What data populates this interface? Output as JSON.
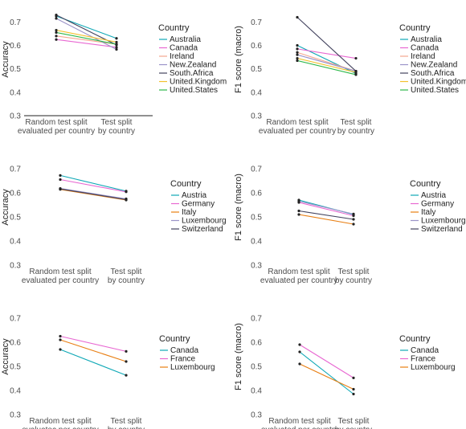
{
  "chart_data": [
    {
      "type": "line",
      "categories": [
        "Random test split\nevaluated per country",
        "Test split\nby country"
      ],
      "ylabel": "Accuracy",
      "ylim": [
        0.3,
        0.78
      ],
      "yticks": [
        0.3,
        0.4,
        0.5,
        0.6,
        0.7
      ],
      "legend_title": "Country",
      "axis_line": true,
      "series": [
        {
          "name": "Australia",
          "color": "#0fa8b6",
          "values": [
            0.725,
            0.63
          ]
        },
        {
          "name": "Canada",
          "color": "#e868d2",
          "values": [
            0.625,
            0.592
          ]
        },
        {
          "name": "Ireland",
          "color": "#f4a78f",
          "values": [
            0.64,
            0.605
          ]
        },
        {
          "name": "New.Zealand",
          "color": "#9b93c8",
          "values": [
            0.715,
            0.583
          ]
        },
        {
          "name": "South.Africa",
          "color": "#43435e",
          "values": [
            0.73,
            0.602
          ]
        },
        {
          "name": "United.Kingdom",
          "color": "#f2c12e",
          "values": [
            0.665,
            0.614
          ]
        },
        {
          "name": "United.States",
          "color": "#2eb84b",
          "values": [
            0.655,
            0.605
          ]
        }
      ]
    },
    {
      "type": "line",
      "categories": [
        "Random test split\nevaluated per country",
        "Test split\nby country"
      ],
      "ylabel": "F1 score (macro)",
      "ylim": [
        0.3,
        0.78
      ],
      "yticks": [
        0.3,
        0.4,
        0.5,
        0.6,
        0.7
      ],
      "legend_title": "Country",
      "axis_line": false,
      "series": [
        {
          "name": "Australia",
          "color": "#0fa8b6",
          "values": [
            0.6,
            0.48
          ]
        },
        {
          "name": "Canada",
          "color": "#e868d2",
          "values": [
            0.585,
            0.545
          ]
        },
        {
          "name": "Ireland",
          "color": "#f4a78f",
          "values": [
            0.57,
            0.49
          ]
        },
        {
          "name": "New.Zealand",
          "color": "#9b93c8",
          "values": [
            0.56,
            0.49
          ]
        },
        {
          "name": "South.Africa",
          "color": "#43435e",
          "values": [
            0.72,
            0.49
          ]
        },
        {
          "name": "United.Kingdom",
          "color": "#f2c12e",
          "values": [
            0.545,
            0.485
          ]
        },
        {
          "name": "United.States",
          "color": "#2eb84b",
          "values": [
            0.535,
            0.475
          ]
        }
      ]
    },
    {
      "type": "line",
      "categories": [
        "Random test split\nevaluated per country",
        "Test split\nby country"
      ],
      "ylabel": "Accuracy",
      "ylim": [
        0.3,
        0.78
      ],
      "yticks": [
        0.3,
        0.4,
        0.5,
        0.6,
        0.7
      ],
      "legend_title": "Country",
      "axis_line": false,
      "series": [
        {
          "name": "Austria",
          "color": "#0fa8b6",
          "values": [
            0.672,
            0.607
          ]
        },
        {
          "name": "Germany",
          "color": "#e868d2",
          "values": [
            0.655,
            0.604
          ]
        },
        {
          "name": "Italy",
          "color": "#e87e12",
          "values": [
            0.614,
            0.57
          ]
        },
        {
          "name": "Luxembourg",
          "color": "#9b93c8",
          "values": [
            0.618,
            0.575
          ]
        },
        {
          "name": "Switzerland",
          "color": "#43435e",
          "values": [
            0.616,
            0.572
          ]
        }
      ]
    },
    {
      "type": "line",
      "categories": [
        "Random test split\nevaluated per country",
        "Test split\nby country"
      ],
      "ylabel": "F1 score (macro)",
      "ylim": [
        0.3,
        0.78
      ],
      "yticks": [
        0.3,
        0.4,
        0.5,
        0.6,
        0.7
      ],
      "legend_title": "Country",
      "axis_line": false,
      "series": [
        {
          "name": "Austria",
          "color": "#0fa8b6",
          "values": [
            0.57,
            0.51
          ]
        },
        {
          "name": "Germany",
          "color": "#e868d2",
          "values": [
            0.56,
            0.505
          ]
        },
        {
          "name": "Italy",
          "color": "#e87e12",
          "values": [
            0.51,
            0.47
          ]
        },
        {
          "name": "Luxembourg",
          "color": "#9b93c8",
          "values": [
            0.565,
            0.512
          ]
        },
        {
          "name": "Switzerland",
          "color": "#43435e",
          "values": [
            0.525,
            0.49
          ]
        }
      ]
    },
    {
      "type": "line",
      "categories": [
        "Random test split\nevaluatec per country",
        "Test split\nby country"
      ],
      "ylabel": "Accuracy",
      "ylim": [
        0.3,
        0.78
      ],
      "yticks": [
        0.3,
        0.4,
        0.5,
        0.6,
        0.7
      ],
      "legend_title": "Country",
      "axis_line": false,
      "series": [
        {
          "name": "Canada",
          "color": "#0fa8b6",
          "values": [
            0.57,
            0.463
          ]
        },
        {
          "name": "France",
          "color": "#e868d2",
          "values": [
            0.625,
            0.562
          ]
        },
        {
          "name": "Luxembourg",
          "color": "#e87e12",
          "values": [
            0.61,
            0.52
          ]
        }
      ]
    },
    {
      "type": "line",
      "categories": [
        "Random test split\nevaluated per country",
        "Test split\nby country"
      ],
      "ylabel": "F1 score (macro)",
      "ylim": [
        0.3,
        0.78
      ],
      "yticks": [
        0.3,
        0.4,
        0.5,
        0.6,
        0.7
      ],
      "legend_title": "Country",
      "axis_line": false,
      "series": [
        {
          "name": "Canada",
          "color": "#0fa8b6",
          "values": [
            0.56,
            0.385
          ]
        },
        {
          "name": "France",
          "color": "#e868d2",
          "values": [
            0.59,
            0.452
          ]
        },
        {
          "name": "Luxembourg",
          "color": "#e87e12",
          "values": [
            0.51,
            0.405
          ]
        }
      ]
    }
  ]
}
